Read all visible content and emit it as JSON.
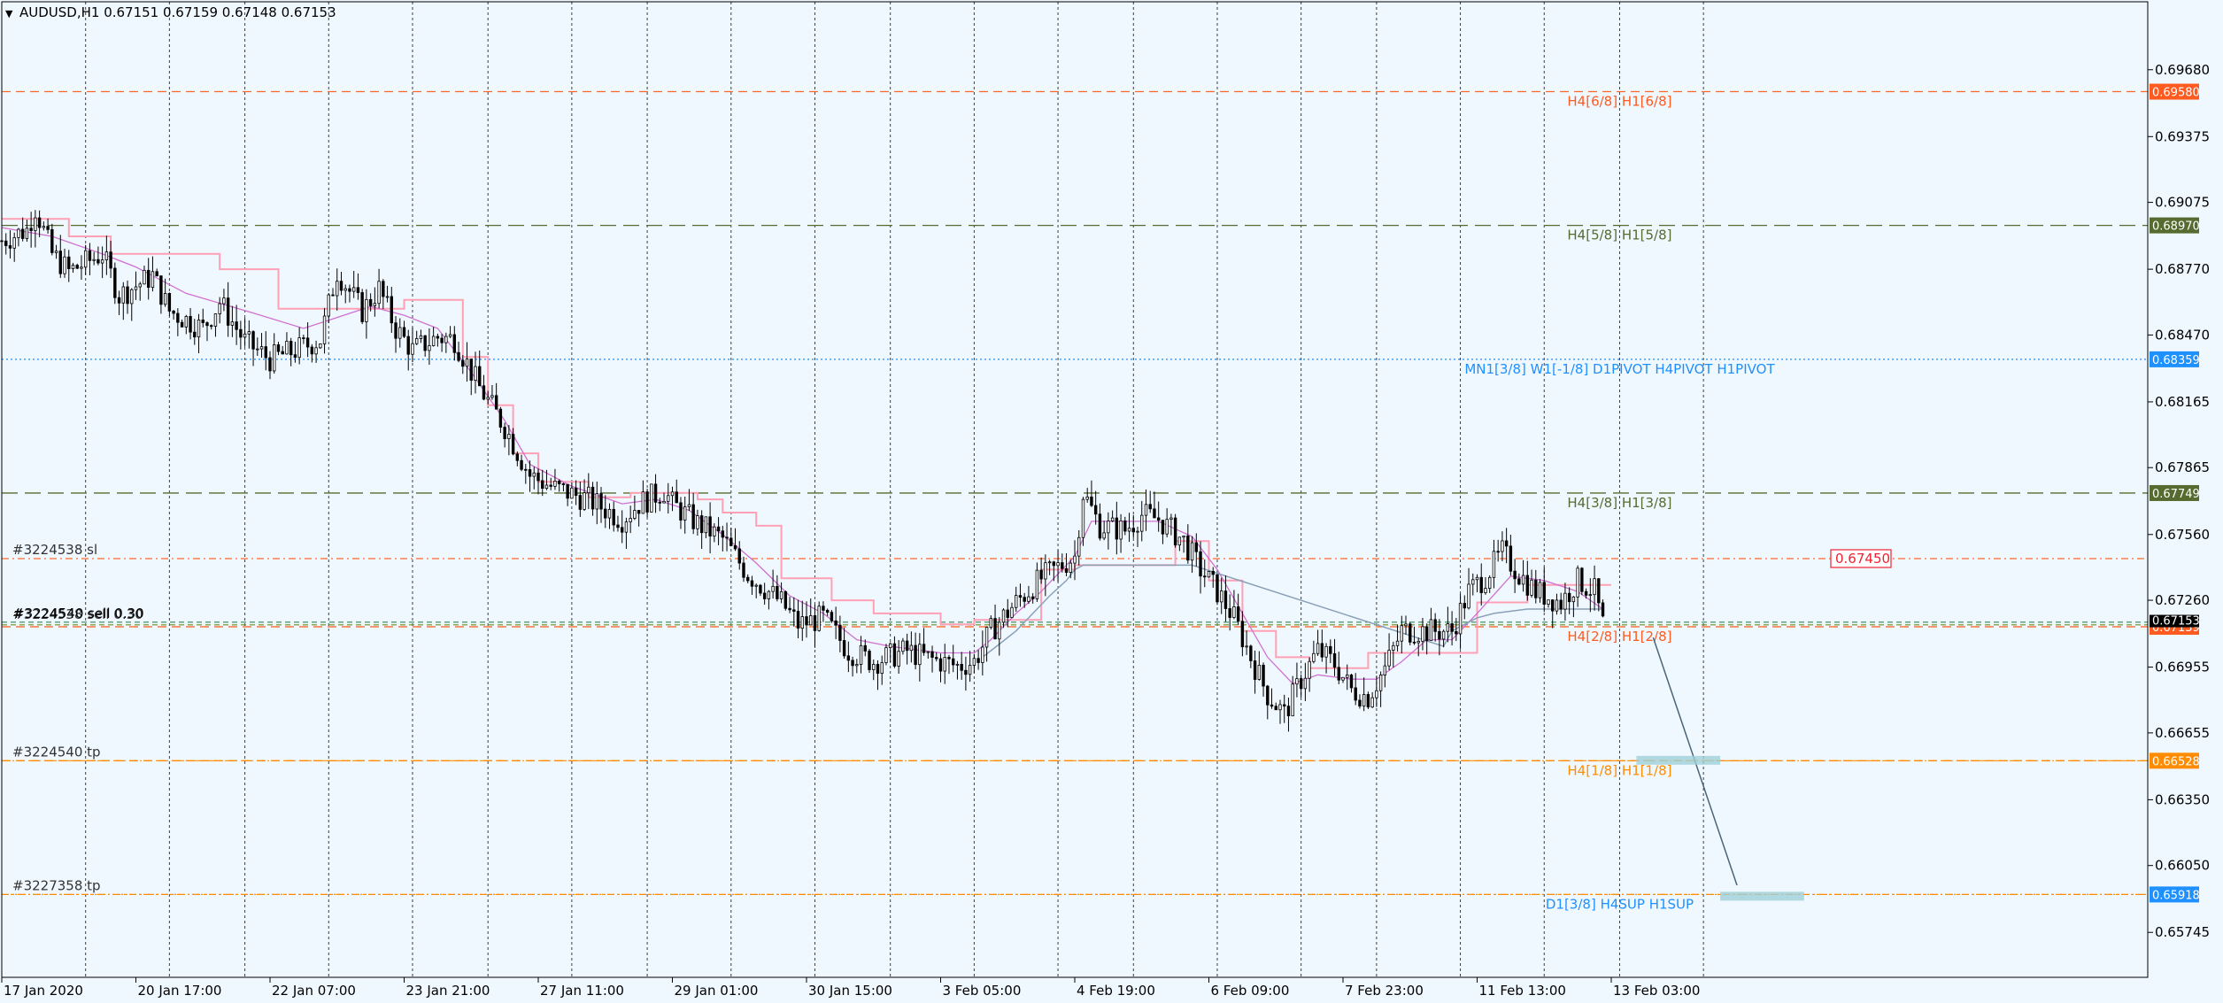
{
  "window": {
    "symbol_header": "AUDUSD,H1  0.67151 0.67159 0.67148 0.67153",
    "menu_glyph": "▼"
  },
  "chart_data": {
    "type": "candlestick",
    "symbol": "AUDUSD",
    "timeframe": "H1",
    "ohlc_header": [
      0.67151,
      0.67159,
      0.67148,
      0.67153
    ],
    "y_ticks": [
      "0.69680",
      "0.69375",
      "0.69075",
      "0.68770",
      "0.68470",
      "0.68165",
      "0.67865",
      "0.67560",
      "0.67260",
      "0.66955",
      "0.66655",
      "0.66350",
      "0.66050",
      "0.65745"
    ],
    "y_tick_values": [
      0.6968,
      0.69375,
      0.69075,
      0.6877,
      0.6847,
      0.68165,
      0.67865,
      0.6756,
      0.6726,
      0.66955,
      0.66655,
      0.6635,
      0.6605,
      0.65745
    ],
    "ylim": [
      0.6554,
      0.6999
    ],
    "x_ticks": [
      "17 Jan 2020",
      "20 Jan 17:00",
      "22 Jan 07:00",
      "23 Jan 21:00",
      "27 Jan 11:00",
      "29 Jan 01:00",
      "30 Jan 15:00",
      "3 Feb 05:00",
      "4 Feb 19:00",
      "6 Feb 09:00",
      "7 Feb 23:00",
      "11 Feb 13:00",
      "13 Feb 03:00"
    ],
    "x_tick_values": [
      0,
      16,
      32,
      48,
      64,
      80,
      96,
      112,
      128,
      144,
      160,
      176,
      192
    ],
    "x_range": [
      0,
      256
    ],
    "vertical_grid": [
      10,
      20,
      29,
      39,
      49,
      58,
      68,
      77,
      87,
      97,
      106,
      116,
      126,
      135,
      145,
      155,
      164,
      174,
      184,
      193,
      203
    ],
    "close_path": [
      [
        0,
        0.689
      ],
      [
        3,
        0.6895
      ],
      [
        4,
        0.6905
      ],
      [
        6,
        0.6884
      ],
      [
        8,
        0.6876
      ],
      [
        12,
        0.6884
      ],
      [
        14,
        0.6865
      ],
      [
        18,
        0.6874
      ],
      [
        20,
        0.6858
      ],
      [
        24,
        0.685
      ],
      [
        26,
        0.6862
      ],
      [
        29,
        0.6844
      ],
      [
        32,
        0.6836
      ],
      [
        35,
        0.684
      ],
      [
        38,
        0.6845
      ],
      [
        40,
        0.6876
      ],
      [
        43,
        0.6858
      ],
      [
        45,
        0.6868
      ],
      [
        47,
        0.685
      ],
      [
        49,
        0.684
      ],
      [
        52,
        0.6846
      ],
      [
        54,
        0.6845
      ],
      [
        57,
        0.6823
      ],
      [
        60,
        0.6805
      ],
      [
        63,
        0.6783
      ],
      [
        66,
        0.6777
      ],
      [
        70,
        0.6772
      ],
      [
        74,
        0.6763
      ],
      [
        76,
        0.677
      ],
      [
        79,
        0.6776
      ],
      [
        80,
        0.677
      ],
      [
        83,
        0.6761
      ],
      [
        86,
        0.6754
      ],
      [
        89,
        0.6738
      ],
      [
        93,
        0.6725
      ],
      [
        95,
        0.6715
      ],
      [
        98,
        0.6718
      ],
      [
        101,
        0.6703
      ],
      [
        104,
        0.6698
      ],
      [
        108,
        0.6703
      ],
      [
        110,
        0.67
      ],
      [
        114,
        0.6696
      ],
      [
        116,
        0.6698
      ],
      [
        118,
        0.6712
      ],
      [
        121,
        0.6725
      ],
      [
        124,
        0.6736
      ],
      [
        128,
        0.6746
      ],
      [
        129,
        0.6775
      ],
      [
        131,
        0.676
      ],
      [
        134,
        0.6758
      ],
      [
        136,
        0.6765
      ],
      [
        138,
        0.6763
      ],
      [
        141,
        0.6753
      ],
      [
        143,
        0.674
      ],
      [
        145,
        0.673
      ],
      [
        147,
        0.6718
      ],
      [
        149,
        0.67
      ],
      [
        151,
        0.6683
      ],
      [
        153,
        0.6674
      ],
      [
        155,
        0.669
      ],
      [
        157,
        0.6703
      ],
      [
        159,
        0.6697
      ],
      [
        161,
        0.6685
      ],
      [
        163,
        0.6682
      ],
      [
        165,
        0.6695
      ],
      [
        167,
        0.6712
      ],
      [
        170,
        0.6712
      ],
      [
        173,
        0.6712
      ],
      [
        175,
        0.673
      ],
      [
        177,
        0.6737
      ],
      [
        179,
        0.6748
      ],
      [
        181,
        0.6738
      ],
      [
        183,
        0.673
      ],
      [
        186,
        0.6725
      ],
      [
        188,
        0.6735
      ],
      [
        190,
        0.673
      ],
      [
        191,
        0.6715
      ]
    ],
    "ma_slow_path": [
      [
        0,
        0.69
      ],
      [
        8,
        0.69
      ],
      [
        8,
        0.6892
      ],
      [
        13,
        0.6892
      ],
      [
        13,
        0.6884
      ],
      [
        26,
        0.6884
      ],
      [
        26,
        0.6877
      ],
      [
        33,
        0.6877
      ],
      [
        33,
        0.6859
      ],
      [
        48,
        0.6859
      ],
      [
        48,
        0.6863
      ],
      [
        55,
        0.6863
      ],
      [
        55,
        0.6837
      ],
      [
        58,
        0.6837
      ],
      [
        58,
        0.6815
      ],
      [
        61,
        0.6815
      ],
      [
        61,
        0.6793
      ],
      [
        64,
        0.6793
      ],
      [
        64,
        0.678
      ],
      [
        70,
        0.678
      ],
      [
        70,
        0.6773
      ],
      [
        75,
        0.6773
      ],
      [
        75,
        0.6775
      ],
      [
        83,
        0.6775
      ],
      [
        83,
        0.6772
      ],
      [
        86,
        0.6772
      ],
      [
        86,
        0.6766
      ],
      [
        90,
        0.6766
      ],
      [
        90,
        0.676
      ],
      [
        93,
        0.676
      ],
      [
        93,
        0.6736
      ],
      [
        99,
        0.6736
      ],
      [
        99,
        0.6726
      ],
      [
        104,
        0.6726
      ],
      [
        104,
        0.672
      ],
      [
        112,
        0.672
      ],
      [
        112,
        0.6715
      ],
      [
        116,
        0.6715
      ],
      [
        116,
        0.6717
      ],
      [
        124,
        0.6717
      ],
      [
        124,
        0.674
      ],
      [
        128,
        0.674
      ],
      [
        128,
        0.6742
      ],
      [
        140,
        0.6742
      ],
      [
        140,
        0.6753
      ],
      [
        144,
        0.6753
      ],
      [
        144,
        0.6735
      ],
      [
        148,
        0.6735
      ],
      [
        148,
        0.6712
      ],
      [
        152,
        0.6712
      ],
      [
        152,
        0.67
      ],
      [
        156,
        0.67
      ],
      [
        156,
        0.6695
      ],
      [
        163,
        0.6695
      ],
      [
        163,
        0.6702
      ],
      [
        176,
        0.6702
      ],
      [
        176,
        0.6725
      ],
      [
        182,
        0.6725
      ],
      [
        182,
        0.6733
      ],
      [
        192,
        0.6733
      ]
    ],
    "ma_fast_path": [
      [
        0,
        0.6896
      ],
      [
        6,
        0.6892
      ],
      [
        12,
        0.6884
      ],
      [
        16,
        0.6878
      ],
      [
        22,
        0.6866
      ],
      [
        30,
        0.6857
      ],
      [
        36,
        0.685
      ],
      [
        40,
        0.6855
      ],
      [
        44,
        0.686
      ],
      [
        48,
        0.6856
      ],
      [
        52,
        0.685
      ],
      [
        56,
        0.683
      ],
      [
        60,
        0.6808
      ],
      [
        63,
        0.6788
      ],
      [
        68,
        0.6778
      ],
      [
        74,
        0.677
      ],
      [
        78,
        0.6772
      ],
      [
        82,
        0.6767
      ],
      [
        86,
        0.6756
      ],
      [
        90,
        0.6743
      ],
      [
        94,
        0.6728
      ],
      [
        98,
        0.672
      ],
      [
        102,
        0.6708
      ],
      [
        106,
        0.6705
      ],
      [
        112,
        0.6702
      ],
      [
        116,
        0.6702
      ],
      [
        118,
        0.6708
      ],
      [
        121,
        0.672
      ],
      [
        124,
        0.673
      ],
      [
        128,
        0.6746
      ],
      [
        130,
        0.6762
      ],
      [
        134,
        0.6762
      ],
      [
        138,
        0.6762
      ],
      [
        142,
        0.6755
      ],
      [
        145,
        0.674
      ],
      [
        148,
        0.672
      ],
      [
        151,
        0.67
      ],
      [
        154,
        0.6688
      ],
      [
        157,
        0.6692
      ],
      [
        161,
        0.669
      ],
      [
        164,
        0.669
      ],
      [
        167,
        0.6698
      ],
      [
        170,
        0.6708
      ],
      [
        173,
        0.6708
      ],
      [
        176,
        0.672
      ],
      [
        180,
        0.6737
      ],
      [
        184,
        0.6735
      ],
      [
        188,
        0.673
      ],
      [
        191,
        0.6722
      ]
    ],
    "support_path": [
      [
        117,
        0.67
      ],
      [
        119,
        0.6706
      ],
      [
        121,
        0.6712
      ],
      [
        123,
        0.672
      ],
      [
        125,
        0.6728
      ],
      [
        127,
        0.6735
      ],
      [
        128,
        0.674
      ],
      [
        129,
        0.6742
      ],
      [
        140,
        0.6742
      ],
      [
        141,
        0.6742
      ],
      [
        142,
        0.6742
      ],
      [
        172,
        0.6705
      ],
      [
        173,
        0.6712
      ],
      [
        176,
        0.6718
      ],
      [
        178,
        0.672
      ],
      [
        182,
        0.6722
      ],
      [
        191,
        0.6722
      ]
    ],
    "horizontal_levels": [
      {
        "label": "H4[6/8] H1[6/8]",
        "price_tag": "0.69580",
        "value": 0.6958,
        "color": "#ff6a2a",
        "tag_bg": "#ff5a1f",
        "style": "dash",
        "label_color": "#ff5a1f"
      },
      {
        "label": "H4[5/8] H1[5/8]",
        "price_tag": "0.68970",
        "value": 0.6897,
        "color": "#556b2f",
        "tag_bg": "#556b2f",
        "style": "longdash",
        "label_color": "#556b2f"
      },
      {
        "label": "MN1[3/8] W1[-1/8] D1PIVOT H4PIVOT H1PIVOT",
        "price_tag": "0.68359",
        "value": 0.68359,
        "color": "#1e90ff",
        "tag_bg": "#1e90ff",
        "style": "dot",
        "label_color": "#1e90ff"
      },
      {
        "label": "H4[3/8] H1[3/8]",
        "price_tag": "0.67749",
        "value": 0.67749,
        "color": "#556b2f",
        "tag_bg": "#556b2f",
        "style": "longdash",
        "label_color": "#556b2f"
      },
      {
        "label": "H4[2/8] H1[2/8]",
        "price_tag": "0.67139",
        "value": 0.67139,
        "color": "#ff5a1f",
        "tag_bg": "#ff5a1f",
        "style": "dash",
        "label_color": "#ff5a1f"
      },
      {
        "label": "H4[1/8] H1[1/8]",
        "price_tag": "0.66528",
        "value": 0.66528,
        "color": "#ff8c00",
        "tag_bg": "#ff8c00",
        "style": "dash",
        "label_color": "#ff8c00"
      },
      {
        "label": "D1[3/8] H4SUP H1SUP",
        "price_tag": "0.65918",
        "value": 0.65918,
        "color": "#ff8c00",
        "tag_bg": "#1e90ff",
        "style": "dot",
        "label_color": "#1e90ff"
      }
    ],
    "trade_lines": [
      {
        "label": "#3224538 sl",
        "value": 0.6745,
        "color": "#ff6a2a"
      },
      {
        "label": "#3224540 tp",
        "value": 0.66528,
        "color": "#ff8c00"
      },
      {
        "label": "#3227358 tp",
        "value": 0.65918,
        "color": "#ff8c00"
      }
    ],
    "order_labels": {
      "back": "#3224538 sell 0.30",
      "front": "#3224540 sell 0.30",
      "value": 0.6716
    },
    "current_price": {
      "tag": "0.67153",
      "value": 0.67153
    },
    "sl_tag": {
      "label": "0.67450",
      "value": 0.6745
    },
    "projection": {
      "from": [
        197,
        0.6709
      ],
      "to": [
        207,
        0.6596
      ]
    },
    "target_boxes": [
      {
        "x0": 195,
        "x1": 205,
        "value": 0.6653
      },
      {
        "x0": 205,
        "x1": 215,
        "value": 0.6591
      }
    ]
  }
}
